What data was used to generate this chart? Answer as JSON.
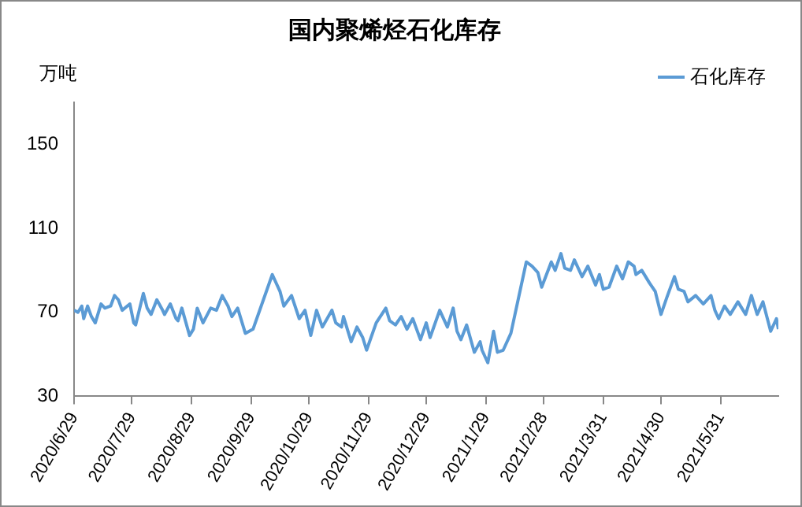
{
  "chart_data": {
    "type": "line",
    "title": "国内聚烯烃石化库存",
    "ylabel": "万吨",
    "xlim": [
      "2020-06-29",
      "2021-06-30"
    ],
    "xticks": [
      {
        "value": "2020-06-29",
        "label": "2020/6/29"
      },
      {
        "value": "2020-07-29",
        "label": "2020/7/29"
      },
      {
        "value": "2020-08-29",
        "label": "2020/8/29"
      },
      {
        "value": "2020-09-29",
        "label": "2020/9/29"
      },
      {
        "value": "2020-10-29",
        "label": "2020/10/29"
      },
      {
        "value": "2020-11-29",
        "label": "2020/11/29"
      },
      {
        "value": "2020-12-29",
        "label": "2020/12/29"
      },
      {
        "value": "2021-01-29",
        "label": "2021/1/29"
      },
      {
        "value": "2021-02-28",
        "label": "2021/2/28"
      },
      {
        "value": "2021-03-31",
        "label": "2021/3/31"
      },
      {
        "value": "2021-04-30",
        "label": "2021/4/30"
      },
      {
        "value": "2021-05-31",
        "label": "2021/5/31"
      }
    ],
    "ylim": [
      30,
      170
    ],
    "yticks": [
      30,
      70,
      110,
      150
    ],
    "grid": false,
    "legend": "top right",
    "marker": "none",
    "line_style": "solid",
    "x": [
      "2020-06-29",
      "2020-07-01",
      "2020-07-03",
      "2020-07-04",
      "2020-07-06",
      "2020-07-08",
      "2020-07-10",
      "2020-07-13",
      "2020-07-15",
      "2020-07-18",
      "2020-07-20",
      "2020-07-22",
      "2020-07-24",
      "2020-07-28",
      "2020-07-30",
      "2020-07-31",
      "2020-08-04",
      "2020-08-06",
      "2020-08-08",
      "2020-08-11",
      "2020-08-14",
      "2020-08-15",
      "2020-08-18",
      "2020-08-21",
      "2020-08-22",
      "2020-08-24",
      "2020-08-28",
      "2020-08-30",
      "2020-09-01",
      "2020-09-04",
      "2020-09-08",
      "2020-09-11",
      "2020-09-14",
      "2020-09-17",
      "2020-09-19",
      "2020-09-22",
      "2020-09-26",
      "2020-09-30",
      "2020-10-10",
      "2020-10-14",
      "2020-10-16",
      "2020-10-20",
      "2020-10-24",
      "2020-10-27",
      "2020-10-30",
      "2020-11-02",
      "2020-11-05",
      "2020-11-10",
      "2020-11-12",
      "2020-11-15",
      "2020-11-16",
      "2020-11-20",
      "2020-11-23",
      "2020-11-26",
      "2020-11-28",
      "2020-12-03",
      "2020-12-08",
      "2020-12-10",
      "2020-12-13",
      "2020-12-16",
      "2020-12-19",
      "2020-12-22",
      "2020-12-26",
      "2020-12-29",
      "2020-12-31",
      "2021-01-05",
      "2021-01-09",
      "2021-01-12",
      "2021-01-14",
      "2021-01-16",
      "2021-01-19",
      "2021-01-23",
      "2021-01-26",
      "2021-01-27",
      "2021-01-30",
      "2021-02-02",
      "2021-02-04",
      "2021-02-07",
      "2021-02-11",
      "2021-02-19",
      "2021-02-22",
      "2021-02-25",
      "2021-02-27",
      "2021-03-04",
      "2021-03-06",
      "2021-03-09",
      "2021-03-11",
      "2021-03-14",
      "2021-03-16",
      "2021-03-20",
      "2021-03-23",
      "2021-03-27",
      "2021-03-29",
      "2021-03-31",
      "2021-04-03",
      "2021-04-07",
      "2021-04-10",
      "2021-04-13",
      "2021-04-16",
      "2021-04-17",
      "2021-04-20",
      "2021-04-24",
      "2021-04-27",
      "2021-04-30",
      "2021-05-03",
      "2021-05-07",
      "2021-05-09",
      "2021-05-12",
      "2021-05-14",
      "2021-05-18",
      "2021-05-22",
      "2021-05-26",
      "2021-05-28",
      "2021-05-30",
      "2021-06-02",
      "2021-06-05",
      "2021-06-09",
      "2021-06-13",
      "2021-06-16",
      "2021-06-19",
      "2021-06-22",
      "2021-06-26",
      "2021-06-29",
      "2021-06-30"
    ],
    "series": [
      {
        "name": "石化库存",
        "color": "#5b9bd5",
        "values": [
          71,
          70,
          73,
          67,
          73,
          68,
          65,
          74,
          72,
          73,
          78,
          76,
          71,
          74,
          65,
          64,
          79,
          72,
          69,
          76,
          71,
          69,
          74,
          67,
          66,
          72,
          59,
          62,
          72,
          65,
          72,
          71,
          78,
          73,
          68,
          72,
          60,
          62,
          88,
          80,
          73,
          78,
          67,
          71,
          59,
          71,
          63,
          71,
          65,
          63,
          68,
          56,
          63,
          58,
          52,
          65,
          72,
          66,
          64,
          68,
          62,
          67,
          57,
          65,
          58,
          71,
          63,
          72,
          61,
          57,
          64,
          51,
          56,
          52,
          46,
          61,
          51,
          52,
          60,
          94,
          92,
          89,
          82,
          94,
          90,
          98,
          91,
          90,
          95,
          87,
          92,
          83,
          88,
          81,
          82,
          92,
          86,
          94,
          92,
          88,
          90,
          84,
          80,
          69,
          77,
          87,
          81,
          80,
          75,
          78,
          74,
          78,
          71,
          67,
          73,
          69,
          75,
          69,
          78,
          69,
          75,
          61,
          67,
          62
        ]
      }
    ]
  }
}
